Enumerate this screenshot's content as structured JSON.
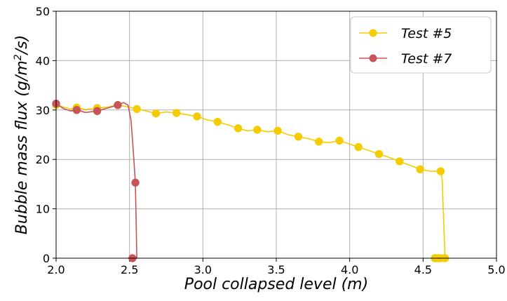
{
  "chart_data": {
    "type": "line",
    "title": "",
    "xlabel": "Pool collapsed level (m)",
    "ylabel": "Bubble mass flux (g/m²/s)",
    "xlim": [
      2.0,
      5.0
    ],
    "ylim": [
      0,
      50
    ],
    "xticks": [
      "2.0",
      "2.5",
      "3.0",
      "3.5",
      "4.0",
      "4.5",
      "5.0"
    ],
    "yticks": [
      "0",
      "10",
      "20",
      "30",
      "40",
      "50"
    ],
    "grid": true,
    "legend_position": "top-right",
    "series": [
      {
        "name": "Test #5",
        "color": "#F5CC00",
        "markers": [
          {
            "x": 2.0,
            "y": 31.0
          },
          {
            "x": 2.14,
            "y": 30.5
          },
          {
            "x": 2.28,
            "y": 30.4
          },
          {
            "x": 2.42,
            "y": 31.0
          },
          {
            "x": 2.55,
            "y": 30.2
          },
          {
            "x": 2.68,
            "y": 29.3
          },
          {
            "x": 2.82,
            "y": 29.4
          },
          {
            "x": 2.96,
            "y": 28.7
          },
          {
            "x": 3.1,
            "y": 27.6
          },
          {
            "x": 3.24,
            "y": 26.3
          },
          {
            "x": 3.37,
            "y": 26.0
          },
          {
            "x": 3.51,
            "y": 25.8
          },
          {
            "x": 3.65,
            "y": 24.6
          },
          {
            "x": 3.79,
            "y": 23.6
          },
          {
            "x": 3.93,
            "y": 23.8
          },
          {
            "x": 4.06,
            "y": 22.5
          },
          {
            "x": 4.2,
            "y": 21.1
          },
          {
            "x": 4.34,
            "y": 19.6
          },
          {
            "x": 4.48,
            "y": 18.0
          },
          {
            "x": 4.62,
            "y": 17.6
          },
          {
            "x": 4.58,
            "y": 0.0
          },
          {
            "x": 4.6,
            "y": 0.0
          },
          {
            "x": 4.62,
            "y": 0.0
          },
          {
            "x": 4.65,
            "y": 0.0
          }
        ],
        "line": [
          [
            2.0,
            31.0
          ],
          [
            2.05,
            30.6
          ],
          [
            2.1,
            30.2
          ],
          [
            2.14,
            30.5
          ],
          [
            2.2,
            30.1
          ],
          [
            2.28,
            30.4
          ],
          [
            2.35,
            30.6
          ],
          [
            2.42,
            31.0
          ],
          [
            2.48,
            30.7
          ],
          [
            2.55,
            30.2
          ],
          [
            2.6,
            29.9
          ],
          [
            2.68,
            29.3
          ],
          [
            2.75,
            29.6
          ],
          [
            2.82,
            29.4
          ],
          [
            2.9,
            29.0
          ],
          [
            2.96,
            28.7
          ],
          [
            3.03,
            28.0
          ],
          [
            3.1,
            27.6
          ],
          [
            3.17,
            27.0
          ],
          [
            3.24,
            26.3
          ],
          [
            3.3,
            25.8
          ],
          [
            3.37,
            26.0
          ],
          [
            3.44,
            25.6
          ],
          [
            3.51,
            25.8
          ],
          [
            3.58,
            25.0
          ],
          [
            3.65,
            24.6
          ],
          [
            3.72,
            24.2
          ],
          [
            3.79,
            23.6
          ],
          [
            3.86,
            23.4
          ],
          [
            3.93,
            23.8
          ],
          [
            4.0,
            23.1
          ],
          [
            4.06,
            22.5
          ],
          [
            4.13,
            21.8
          ],
          [
            4.2,
            21.1
          ],
          [
            4.27,
            20.4
          ],
          [
            4.34,
            19.6
          ],
          [
            4.41,
            18.8
          ],
          [
            4.48,
            18.0
          ],
          [
            4.55,
            17.6
          ],
          [
            4.62,
            17.6
          ],
          [
            4.63,
            16.0
          ],
          [
            4.64,
            8.0
          ],
          [
            4.65,
            0.0
          ],
          [
            4.58,
            0.0
          ]
        ]
      },
      {
        "name": "Test #7",
        "color": "#C8545A",
        "markers": [
          {
            "x": 2.0,
            "y": 31.3
          },
          {
            "x": 2.14,
            "y": 30.0
          },
          {
            "x": 2.28,
            "y": 29.8
          },
          {
            "x": 2.42,
            "y": 31.0
          },
          {
            "x": 2.54,
            "y": 15.3
          },
          {
            "x": 2.52,
            "y": 0.0
          }
        ],
        "line": [
          [
            2.0,
            31.3
          ],
          [
            2.05,
            30.3
          ],
          [
            2.1,
            29.8
          ],
          [
            2.14,
            30.0
          ],
          [
            2.2,
            29.5
          ],
          [
            2.28,
            29.8
          ],
          [
            2.35,
            30.4
          ],
          [
            2.42,
            31.0
          ],
          [
            2.46,
            31.5
          ],
          [
            2.49,
            31.0
          ],
          [
            2.51,
            28.0
          ],
          [
            2.52,
            24.0
          ],
          [
            2.53,
            20.0
          ],
          [
            2.54,
            15.3
          ],
          [
            2.545,
            8.0
          ],
          [
            2.55,
            0.0
          ],
          [
            2.52,
            0.0
          ]
        ]
      }
    ]
  }
}
